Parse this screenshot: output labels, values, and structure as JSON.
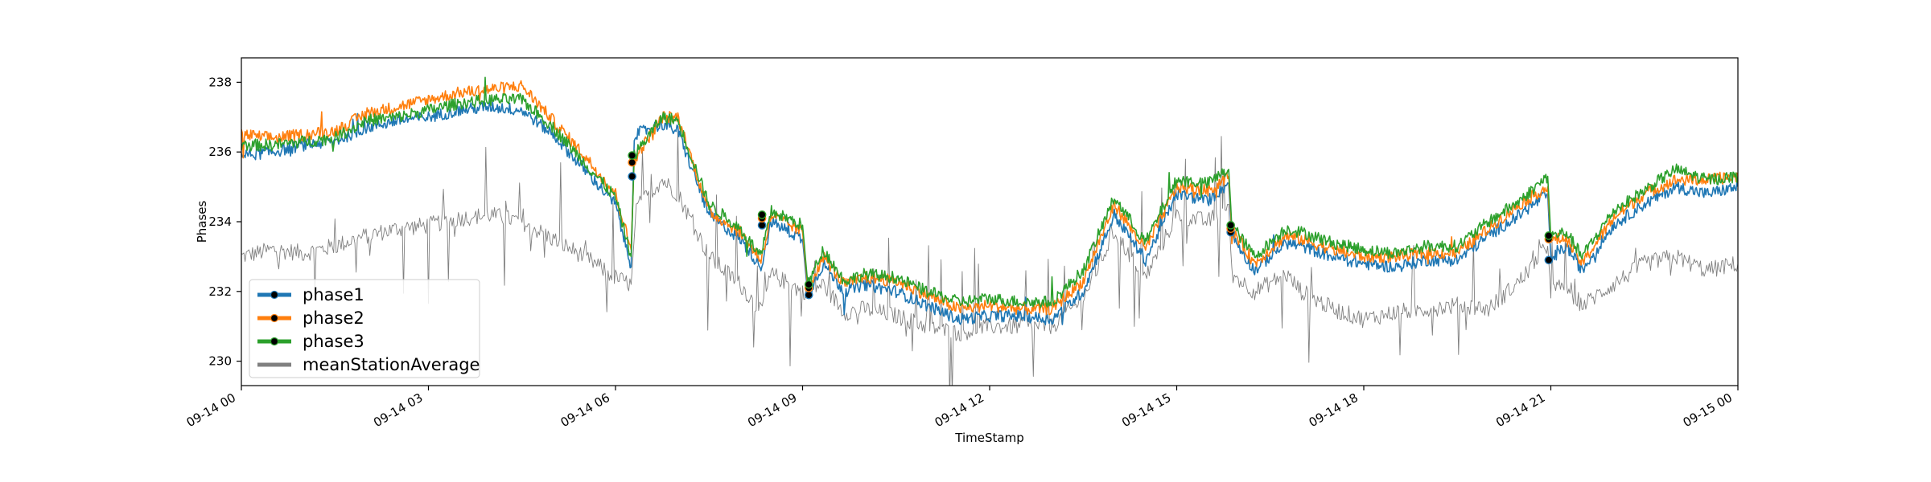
{
  "chart_data": {
    "type": "line",
    "xlabel": "TimeStamp",
    "ylabel": "Phases",
    "xlim": [
      "2021-09-14T00:00",
      "2021-09-15T00:00"
    ],
    "ylim": [
      229.3,
      238.7
    ],
    "x_ticks": [
      {
        "t": "2021-09-14T00:00",
        "label": "09-14 00"
      },
      {
        "t": "2021-09-14T03:00",
        "label": "09-14 03"
      },
      {
        "t": "2021-09-14T06:00",
        "label": "09-14 06"
      },
      {
        "t": "2021-09-14T09:00",
        "label": "09-14 09"
      },
      {
        "t": "2021-09-14T12:00",
        "label": "09-14 12"
      },
      {
        "t": "2021-09-14T15:00",
        "label": "09-14 15"
      },
      {
        "t": "2021-09-14T18:00",
        "label": "09-14 18"
      },
      {
        "t": "2021-09-14T21:00",
        "label": "09-14 21"
      },
      {
        "t": "2021-09-15T00:00",
        "label": "09-15 00"
      }
    ],
    "y_ticks": [
      230,
      232,
      234,
      236,
      238
    ],
    "legend_position": "lower-left",
    "grid": false,
    "series": [
      {
        "name": "phase1",
        "color": "#1f77b4",
        "points": [
          [
            "00:00",
            235.9
          ],
          [
            "00:30",
            236.0
          ],
          [
            "01:00",
            236.2
          ],
          [
            "01:30",
            236.3
          ],
          [
            "02:00",
            236.7
          ],
          [
            "02:30",
            236.9
          ],
          [
            "03:00",
            237.0
          ],
          [
            "03:30",
            237.2
          ],
          [
            "04:00",
            237.3
          ],
          [
            "04:30",
            237.2
          ],
          [
            "05:00",
            236.5
          ],
          [
            "05:30",
            235.5
          ],
          [
            "06:00",
            234.5
          ],
          [
            "06:15",
            232.7
          ],
          [
            "06:18",
            236.5
          ],
          [
            "06:45",
            236.8
          ],
          [
            "07:00",
            236.6
          ],
          [
            "07:30",
            234.2
          ],
          [
            "08:00",
            233.5
          ],
          [
            "08:20",
            232.7
          ],
          [
            "08:30",
            234.0
          ],
          [
            "09:00",
            233.5
          ],
          [
            "09:05",
            231.9
          ],
          [
            "09:20",
            232.8
          ],
          [
            "09:40",
            232.0
          ],
          [
            "10:00",
            232.2
          ],
          [
            "10:30",
            232.0
          ],
          [
            "11:00",
            231.6
          ],
          [
            "11:30",
            231.2
          ],
          [
            "12:00",
            231.3
          ],
          [
            "12:30",
            231.3
          ],
          [
            "13:00",
            231.2
          ],
          [
            "13:30",
            232.0
          ],
          [
            "14:00",
            234.2
          ],
          [
            "14:30",
            232.9
          ],
          [
            "15:00",
            234.8
          ],
          [
            "15:30",
            234.6
          ],
          [
            "15:50",
            235.1
          ],
          [
            "15:53",
            233.6
          ],
          [
            "16:15",
            232.6
          ],
          [
            "16:45",
            233.4
          ],
          [
            "17:00",
            233.3
          ],
          [
            "17:30",
            233.0
          ],
          [
            "18:00",
            232.8
          ],
          [
            "18:30",
            232.7
          ],
          [
            "19:00",
            232.9
          ],
          [
            "19:30",
            232.9
          ],
          [
            "20:00",
            233.6
          ],
          [
            "20:30",
            234.2
          ],
          [
            "20:57",
            234.8
          ],
          [
            "21:00",
            232.9
          ],
          [
            "21:15",
            233.3
          ],
          [
            "21:30",
            232.6
          ],
          [
            "22:00",
            233.9
          ],
          [
            "22:30",
            234.5
          ],
          [
            "23:00",
            235.0
          ],
          [
            "23:30",
            234.8
          ],
          [
            "24:00",
            235.0
          ]
        ]
      },
      {
        "name": "phase2",
        "color": "#ff7f0e",
        "points": [
          [
            "00:00",
            236.5
          ],
          [
            "00:30",
            236.4
          ],
          [
            "01:00",
            236.5
          ],
          [
            "01:30",
            236.6
          ],
          [
            "02:00",
            237.1
          ],
          [
            "02:30",
            237.3
          ],
          [
            "03:00",
            237.5
          ],
          [
            "03:30",
            237.7
          ],
          [
            "04:00",
            237.8
          ],
          [
            "04:30",
            237.9
          ],
          [
            "05:00",
            236.9
          ],
          [
            "05:30",
            235.9
          ],
          [
            "06:00",
            234.8
          ],
          [
            "06:15",
            233.2
          ],
          [
            "06:18",
            235.8
          ],
          [
            "06:45",
            237.0
          ],
          [
            "07:00",
            237.0
          ],
          [
            "07:30",
            234.3
          ],
          [
            "08:00",
            233.7
          ],
          [
            "08:20",
            232.9
          ],
          [
            "08:30",
            234.2
          ],
          [
            "09:00",
            233.7
          ],
          [
            "09:05",
            232.1
          ],
          [
            "09:20",
            233.0
          ],
          [
            "09:40",
            232.2
          ],
          [
            "10:00",
            232.4
          ],
          [
            "10:30",
            232.3
          ],
          [
            "11:00",
            231.9
          ],
          [
            "11:30",
            231.5
          ],
          [
            "12:00",
            231.6
          ],
          [
            "12:30",
            231.5
          ],
          [
            "13:00",
            231.5
          ],
          [
            "13:30",
            232.3
          ],
          [
            "14:00",
            234.5
          ],
          [
            "14:30",
            233.2
          ],
          [
            "15:00",
            235.0
          ],
          [
            "15:30",
            234.9
          ],
          [
            "15:50",
            235.3
          ],
          [
            "15:53",
            233.8
          ],
          [
            "16:15",
            232.8
          ],
          [
            "16:45",
            233.6
          ],
          [
            "17:00",
            233.5
          ],
          [
            "17:30",
            233.2
          ],
          [
            "18:00",
            233.0
          ],
          [
            "18:30",
            233.0
          ],
          [
            "19:00",
            233.1
          ],
          [
            "19:30",
            233.1
          ],
          [
            "20:00",
            233.8
          ],
          [
            "20:30",
            234.5
          ],
          [
            "20:57",
            235.0
          ],
          [
            "21:00",
            233.5
          ],
          [
            "21:15",
            233.5
          ],
          [
            "21:30",
            232.8
          ],
          [
            "22:00",
            234.1
          ],
          [
            "22:30",
            234.8
          ],
          [
            "23:00",
            235.2
          ],
          [
            "23:30",
            235.2
          ],
          [
            "24:00",
            235.3
          ]
        ]
      },
      {
        "name": "phase3",
        "color": "#2ca02c",
        "points": [
          [
            "00:00",
            236.2
          ],
          [
            "00:30",
            236.2
          ],
          [
            "01:00",
            236.3
          ],
          [
            "01:30",
            236.4
          ],
          [
            "02:00",
            236.9
          ],
          [
            "02:30",
            237.0
          ],
          [
            "03:00",
            237.2
          ],
          [
            "03:30",
            237.4
          ],
          [
            "04:00",
            237.5
          ],
          [
            "04:30",
            237.5
          ],
          [
            "05:00",
            236.7
          ],
          [
            "05:30",
            235.7
          ],
          [
            "06:00",
            234.7
          ],
          [
            "06:15",
            233.0
          ],
          [
            "06:18",
            235.9
          ],
          [
            "06:45",
            237.0
          ],
          [
            "07:00",
            236.9
          ],
          [
            "07:30",
            234.5
          ],
          [
            "08:00",
            233.8
          ],
          [
            "08:20",
            233.0
          ],
          [
            "08:30",
            234.3
          ],
          [
            "09:00",
            233.9
          ],
          [
            "09:05",
            232.2
          ],
          [
            "09:20",
            233.2
          ],
          [
            "09:40",
            232.3
          ],
          [
            "10:00",
            232.5
          ],
          [
            "10:30",
            232.4
          ],
          [
            "11:00",
            232.0
          ],
          [
            "11:30",
            231.7
          ],
          [
            "12:00",
            231.8
          ],
          [
            "12:30",
            231.7
          ],
          [
            "13:00",
            231.7
          ],
          [
            "13:30",
            232.6
          ],
          [
            "14:00",
            234.7
          ],
          [
            "14:30",
            233.4
          ],
          [
            "15:00",
            235.2
          ],
          [
            "15:30",
            235.1
          ],
          [
            "15:50",
            235.5
          ],
          [
            "15:53",
            233.9
          ],
          [
            "16:15",
            233.0
          ],
          [
            "16:45",
            233.8
          ],
          [
            "17:00",
            233.7
          ],
          [
            "17:30",
            233.4
          ],
          [
            "18:00",
            233.2
          ],
          [
            "18:30",
            233.1
          ],
          [
            "19:00",
            233.3
          ],
          [
            "19:30",
            233.3
          ],
          [
            "20:00",
            234.0
          ],
          [
            "20:30",
            234.6
          ],
          [
            "20:57",
            235.3
          ],
          [
            "21:00",
            233.6
          ],
          [
            "21:15",
            233.7
          ],
          [
            "21:30",
            233.0
          ],
          [
            "22:00",
            234.3
          ],
          [
            "22:30",
            234.9
          ],
          [
            "23:00",
            235.5
          ],
          [
            "23:30",
            235.2
          ],
          [
            "24:00",
            235.3
          ]
        ]
      },
      {
        "name": "meanStationAverage",
        "color": "#808080",
        "points": [
          [
            "00:00",
            233.0
          ],
          [
            "00:30",
            233.2
          ],
          [
            "01:00",
            233.1
          ],
          [
            "01:30",
            233.3
          ],
          [
            "02:00",
            233.6
          ],
          [
            "02:30",
            233.8
          ],
          [
            "03:00",
            233.9
          ],
          [
            "03:30",
            234.1
          ],
          [
            "04:00",
            234.2
          ],
          [
            "04:30",
            234.0
          ],
          [
            "05:00",
            233.5
          ],
          [
            "05:30",
            233.0
          ],
          [
            "06:00",
            232.4
          ],
          [
            "06:15",
            232.2
          ],
          [
            "06:20",
            234.4
          ],
          [
            "06:45",
            235.2
          ],
          [
            "07:00",
            234.8
          ],
          [
            "07:30",
            233.0
          ],
          [
            "08:00",
            232.2
          ],
          [
            "08:20",
            231.4
          ],
          [
            "08:30",
            232.5
          ],
          [
            "09:00",
            232.0
          ],
          [
            "09:20",
            232.2
          ],
          [
            "09:40",
            231.4
          ],
          [
            "10:00",
            231.5
          ],
          [
            "10:30",
            231.3
          ],
          [
            "11:00",
            231.0
          ],
          [
            "11:30",
            230.8
          ],
          [
            "12:00",
            231.0
          ],
          [
            "12:30",
            231.0
          ],
          [
            "13:00",
            231.0
          ],
          [
            "13:30",
            231.8
          ],
          [
            "14:00",
            233.7
          ],
          [
            "14:30",
            232.4
          ],
          [
            "15:00",
            234.2
          ],
          [
            "15:30",
            234.0
          ],
          [
            "15:50",
            234.5
          ],
          [
            "15:53",
            232.5
          ],
          [
            "16:15",
            232.0
          ],
          [
            "16:45",
            232.5
          ],
          [
            "17:00",
            232.0
          ],
          [
            "17:30",
            231.5
          ],
          [
            "18:00",
            231.2
          ],
          [
            "18:30",
            231.4
          ],
          [
            "19:00",
            231.5
          ],
          [
            "19:30",
            231.6
          ],
          [
            "20:00",
            231.5
          ],
          [
            "20:30",
            232.3
          ],
          [
            "20:57",
            233.3
          ],
          [
            "21:00",
            232.0
          ],
          [
            "21:15",
            232.2
          ],
          [
            "21:30",
            231.6
          ],
          [
            "22:00",
            232.2
          ],
          [
            "22:30",
            232.8
          ],
          [
            "23:00",
            233.0
          ],
          [
            "23:30",
            232.6
          ],
          [
            "24:00",
            232.8
          ]
        ]
      }
    ],
    "markers": [
      {
        "t": "06:16",
        "values": [
          235.3,
          235.7,
          235.9
        ]
      },
      {
        "t": "08:21",
        "values": [
          233.9,
          234.1,
          234.2
        ]
      },
      {
        "t": "09:06",
        "values": [
          231.9,
          232.1,
          232.2
        ]
      },
      {
        "t": "15:52",
        "values": [
          233.7,
          233.8,
          233.9
        ]
      },
      {
        "t": "20:58",
        "values": [
          232.9,
          233.5,
          233.6
        ]
      }
    ]
  }
}
